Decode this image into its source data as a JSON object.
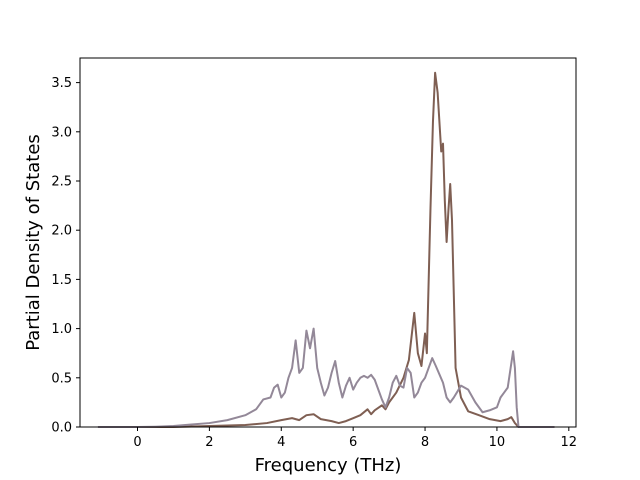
{
  "chart_data": {
    "type": "line",
    "xlabel": "Frequency (THz)",
    "ylabel": "Partial Density of States",
    "xlim": [
      -1.6,
      12.2
    ],
    "ylim": [
      0,
      3.75
    ],
    "xticks": [
      "0",
      "2",
      "4",
      "6",
      "8",
      "10",
      "12"
    ],
    "yticks": [
      "0.0",
      "0.5",
      "1.0",
      "1.5",
      "2.0",
      "2.5",
      "3.0",
      "3.5"
    ],
    "grid": false,
    "series": [
      {
        "color": "#7f5f53",
        "points": [
          [
            -1.1,
            0
          ],
          [
            0,
            0
          ],
          [
            1,
            0
          ],
          [
            2,
            0.01
          ],
          [
            3,
            0.02
          ],
          [
            3.6,
            0.04
          ],
          [
            4.0,
            0.07
          ],
          [
            4.3,
            0.09
          ],
          [
            4.5,
            0.07
          ],
          [
            4.7,
            0.12
          ],
          [
            4.9,
            0.13
          ],
          [
            5.1,
            0.08
          ],
          [
            5.4,
            0.06
          ],
          [
            5.6,
            0.04
          ],
          [
            5.8,
            0.06
          ],
          [
            6.0,
            0.09
          ],
          [
            6.2,
            0.12
          ],
          [
            6.4,
            0.18
          ],
          [
            6.5,
            0.13
          ],
          [
            6.6,
            0.17
          ],
          [
            6.8,
            0.22
          ],
          [
            6.9,
            0.18
          ],
          [
            7.0,
            0.25
          ],
          [
            7.2,
            0.35
          ],
          [
            7.4,
            0.5
          ],
          [
            7.55,
            0.68
          ],
          [
            7.7,
            1.16
          ],
          [
            7.8,
            0.75
          ],
          [
            7.9,
            0.62
          ],
          [
            8.0,
            0.95
          ],
          [
            8.05,
            0.75
          ],
          [
            8.15,
            2.2
          ],
          [
            8.22,
            3.1
          ],
          [
            8.28,
            3.6
          ],
          [
            8.35,
            3.4
          ],
          [
            8.45,
            2.8
          ],
          [
            8.5,
            2.88
          ],
          [
            8.55,
            2.3
          ],
          [
            8.6,
            1.88
          ],
          [
            8.65,
            2.2
          ],
          [
            8.7,
            2.47
          ],
          [
            8.75,
            2.1
          ],
          [
            8.85,
            0.6
          ],
          [
            9.0,
            0.3
          ],
          [
            9.2,
            0.16
          ],
          [
            9.5,
            0.12
          ],
          [
            9.8,
            0.08
          ],
          [
            10.1,
            0.06
          ],
          [
            10.3,
            0.08
          ],
          [
            10.4,
            0.1
          ],
          [
            10.5,
            0.04
          ],
          [
            10.6,
            0
          ],
          [
            11.6,
            0
          ]
        ]
      },
      {
        "color": "#938898",
        "points": [
          [
            -1.1,
            0
          ],
          [
            0,
            0
          ],
          [
            0.5,
            0.003
          ],
          [
            1,
            0.01
          ],
          [
            1.5,
            0.025
          ],
          [
            2,
            0.04
          ],
          [
            2.5,
            0.07
          ],
          [
            3,
            0.12
          ],
          [
            3.3,
            0.18
          ],
          [
            3.5,
            0.28
          ],
          [
            3.7,
            0.3
          ],
          [
            3.8,
            0.4
          ],
          [
            3.9,
            0.43
          ],
          [
            4.0,
            0.3
          ],
          [
            4.1,
            0.35
          ],
          [
            4.2,
            0.5
          ],
          [
            4.3,
            0.6
          ],
          [
            4.4,
            0.88
          ],
          [
            4.5,
            0.55
          ],
          [
            4.6,
            0.6
          ],
          [
            4.7,
            0.98
          ],
          [
            4.8,
            0.8
          ],
          [
            4.9,
            1.0
          ],
          [
            5.0,
            0.6
          ],
          [
            5.1,
            0.45
          ],
          [
            5.2,
            0.32
          ],
          [
            5.3,
            0.4
          ],
          [
            5.4,
            0.55
          ],
          [
            5.5,
            0.67
          ],
          [
            5.6,
            0.45
          ],
          [
            5.7,
            0.3
          ],
          [
            5.8,
            0.42
          ],
          [
            5.9,
            0.5
          ],
          [
            6.0,
            0.38
          ],
          [
            6.1,
            0.45
          ],
          [
            6.2,
            0.5
          ],
          [
            6.3,
            0.52
          ],
          [
            6.4,
            0.5
          ],
          [
            6.5,
            0.53
          ],
          [
            6.6,
            0.48
          ],
          [
            6.7,
            0.38
          ],
          [
            6.8,
            0.28
          ],
          [
            6.9,
            0.2
          ],
          [
            7.0,
            0.3
          ],
          [
            7.1,
            0.45
          ],
          [
            7.2,
            0.52
          ],
          [
            7.3,
            0.42
          ],
          [
            7.4,
            0.4
          ],
          [
            7.5,
            0.6
          ],
          [
            7.6,
            0.55
          ],
          [
            7.7,
            0.3
          ],
          [
            7.8,
            0.35
          ],
          [
            7.9,
            0.45
          ],
          [
            8.0,
            0.5
          ],
          [
            8.1,
            0.6
          ],
          [
            8.2,
            0.7
          ],
          [
            8.3,
            0.62
          ],
          [
            8.5,
            0.45
          ],
          [
            8.6,
            0.3
          ],
          [
            8.7,
            0.25
          ],
          [
            8.8,
            0.3
          ],
          [
            9.0,
            0.42
          ],
          [
            9.2,
            0.38
          ],
          [
            9.4,
            0.25
          ],
          [
            9.6,
            0.15
          ],
          [
            9.8,
            0.17
          ],
          [
            10.0,
            0.2
          ],
          [
            10.1,
            0.3
          ],
          [
            10.2,
            0.35
          ],
          [
            10.3,
            0.4
          ],
          [
            10.45,
            0.77
          ],
          [
            10.5,
            0.6
          ],
          [
            10.55,
            0.2
          ],
          [
            10.6,
            0
          ],
          [
            11.6,
            0
          ]
        ]
      }
    ]
  }
}
